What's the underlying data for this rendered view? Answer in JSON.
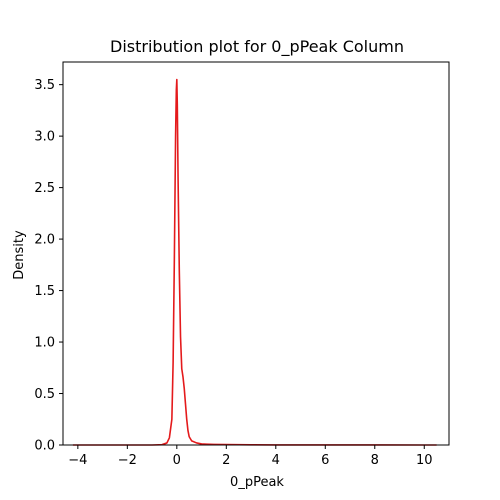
{
  "chart_data": {
    "type": "line",
    "title": "Distribution plot for 0_pPeak Column",
    "xlabel": "0_pPeak",
    "ylabel": "Density",
    "xlim": [
      -4.6,
      11.0
    ],
    "ylim": [
      0,
      3.72
    ],
    "x_ticks": [
      -4,
      -2,
      0,
      2,
      4,
      6,
      8,
      10
    ],
    "x_tick_labels": [
      "−4",
      "−2",
      "0",
      "2",
      "4",
      "6",
      "8",
      "10"
    ],
    "y_ticks": [
      0.0,
      0.5,
      1.0,
      1.5,
      2.0,
      2.5,
      3.0,
      3.5
    ],
    "y_tick_labels": [
      "0.0",
      "0.5",
      "1.0",
      "1.5",
      "2.0",
      "2.5",
      "3.0",
      "3.5"
    ],
    "grid": false,
    "series": [
      {
        "color": "#e41a1c",
        "x": [
          -4.2,
          -3.0,
          -2.0,
          -1.0,
          -0.6,
          -0.4,
          -0.3,
          -0.2,
          -0.15,
          -0.1,
          -0.05,
          -0.02,
          0.0,
          0.02,
          0.05,
          0.1,
          0.15,
          0.2,
          0.25,
          0.3,
          0.35,
          0.4,
          0.45,
          0.5,
          0.6,
          0.8,
          1.0,
          1.2,
          1.5,
          2.0,
          3.0,
          4.0,
          6.0,
          8.0,
          10.0,
          10.5
        ],
        "y": [
          0.0,
          0.0,
          0.0,
          0.0,
          0.003,
          0.02,
          0.07,
          0.25,
          0.8,
          1.8,
          3.0,
          3.45,
          3.55,
          3.3,
          2.6,
          1.7,
          1.05,
          0.74,
          0.66,
          0.55,
          0.4,
          0.25,
          0.14,
          0.08,
          0.04,
          0.02,
          0.01,
          0.008,
          0.006,
          0.004,
          0.002,
          0.001,
          0.001,
          0.001,
          0.0,
          0.0
        ]
      }
    ]
  }
}
